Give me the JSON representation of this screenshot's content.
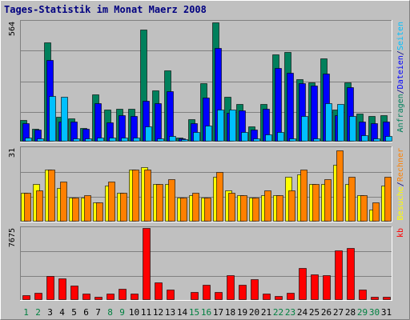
{
  "title": "Tages-Statistik im Monat Maerz 2008",
  "colors": {
    "background": "#c0c0c0",
    "border_dark": "#808080",
    "border_light": "#ffffff",
    "title": "#000080",
    "plot_bg": "#c0c0c0",
    "grid": "#808080",
    "anfragen": "#00805c",
    "dateien": "#0000ff",
    "seiten": "#00c0ff",
    "besuche": "#ffff00",
    "rechner": "#ff8000",
    "kb": "#ff0000",
    "weekday_label": "#000000",
    "weekend_label": "#008040"
  },
  "chart_data": [
    {
      "type": "bar",
      "panel": "requests",
      "ytick_label": "564",
      "ylim": [
        0,
        564
      ],
      "legend_placement": "right",
      "categories": [
        "1",
        "2",
        "3",
        "4",
        "5",
        "6",
        "7",
        "8",
        "9",
        "10",
        "11",
        "12",
        "13",
        "14",
        "15",
        "16",
        "17",
        "18",
        "19",
        "20",
        "21",
        "22",
        "23",
        "24",
        "25",
        "26",
        "27",
        "28",
        "29",
        "30",
        "31"
      ],
      "weekend_days": [
        "1",
        "2",
        "8",
        "9",
        "15",
        "16",
        "22",
        "23",
        "29",
        "30"
      ],
      "series": [
        {
          "name": "Anfragen",
          "color_key": "anfragen",
          "values": [
            100,
            60,
            465,
            115,
            110,
            65,
            220,
            150,
            155,
            155,
            525,
            240,
            335,
            20,
            105,
            275,
            560,
            210,
            175,
            70,
            175,
            410,
            420,
            295,
            280,
            390,
            150,
            280,
            130,
            120,
            125
          ]
        },
        {
          "name": "Dateien",
          "color_key": "dateien",
          "values": [
            85,
            55,
            385,
            95,
            95,
            60,
            180,
            90,
            125,
            120,
            190,
            180,
            235,
            15,
            85,
            205,
            440,
            135,
            145,
            55,
            155,
            345,
            325,
            275,
            265,
            320,
            125,
            255,
            95,
            85,
            95
          ]
        },
        {
          "name": "Seiten",
          "color_key": "seiten",
          "values": [
            20,
            15,
            215,
            210,
            15,
            15,
            20,
            20,
            20,
            20,
            70,
            15,
            25,
            10,
            45,
            75,
            150,
            150,
            45,
            15,
            35,
            45,
            15,
            120,
            15,
            180,
            175,
            120,
            30,
            15,
            25
          ]
        }
      ]
    },
    {
      "type": "bar",
      "panel": "visits",
      "ytick_label": "31",
      "ylim": [
        0,
        31
      ],
      "legend_placement": "right",
      "categories": [
        "1",
        "2",
        "3",
        "4",
        "5",
        "6",
        "7",
        "8",
        "9",
        "10",
        "11",
        "12",
        "13",
        "14",
        "15",
        "16",
        "17",
        "18",
        "19",
        "20",
        "21",
        "22",
        "23",
        "24",
        "25",
        "26",
        "27",
        "28",
        "29",
        "30",
        "31"
      ],
      "series": [
        {
          "name": "Besuche",
          "color_key": "besuche",
          "values": [
            12,
            16,
            22,
            14,
            10,
            10,
            8,
            15,
            12,
            22,
            23,
            16,
            16,
            10,
            11,
            10,
            19,
            13,
            11,
            10,
            11,
            11,
            19,
            20,
            16,
            16,
            24,
            16,
            11,
            5,
            15
          ]
        },
        {
          "name": "Rechner",
          "color_key": "rechner",
          "values": [
            12,
            13,
            22,
            17,
            10,
            11,
            8,
            17,
            12,
            22,
            22,
            16,
            18,
            10,
            12,
            10,
            21,
            12,
            11,
            10,
            13,
            11,
            13,
            22,
            16,
            18,
            30,
            19,
            11,
            8,
            19
          ]
        }
      ]
    },
    {
      "type": "bar",
      "panel": "kb",
      "ytick_label": "7675",
      "ylim": [
        0,
        7675
      ],
      "legend_placement": "right",
      "categories": [
        "1",
        "2",
        "3",
        "4",
        "5",
        "6",
        "7",
        "8",
        "9",
        "10",
        "11",
        "12",
        "13",
        "14",
        "15",
        "16",
        "17",
        "18",
        "19",
        "20",
        "21",
        "22",
        "23",
        "24",
        "25",
        "26",
        "27",
        "28",
        "29",
        "30",
        "31"
      ],
      "series": [
        {
          "name": "kb",
          "color_key": "kb",
          "values": [
            500,
            800,
            2600,
            2300,
            1500,
            700,
            300,
            650,
            1200,
            700,
            7675,
            1850,
            1150,
            100,
            850,
            1600,
            850,
            2650,
            1600,
            2250,
            700,
            450,
            800,
            3400,
            2750,
            2650,
            5300,
            5550,
            1100,
            350,
            350
          ]
        }
      ]
    }
  ]
}
